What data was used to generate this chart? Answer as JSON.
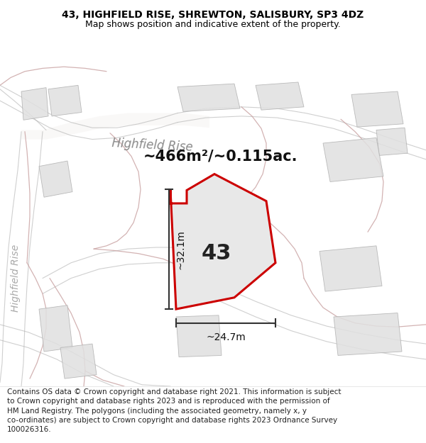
{
  "title_line1": "43, HIGHFIELD RISE, SHREWTON, SALISBURY, SP3 4DZ",
  "title_line2": "Map shows position and indicative extent of the property.",
  "area_text": "~466m²/~0.115ac.",
  "property_label": "43",
  "road_label_top": "Highfield Rise",
  "road_label_left": "Highfield Rise",
  "dim_vertical": "~32.1m",
  "dim_horizontal": "~24.7m",
  "disclaimer": "Contains OS data © Crown copyright and database right 2021. This information is subject\nto Crown copyright and database rights 2023 and is reproduced with the permission of\nHM Land Registry. The polygons (including the associated geometry, namely x, y\nco-ordinates) are subject to Crown copyright and database rights 2023 Ordnance Survey\n100026316.",
  "map_bg": "#ffffff",
  "property_fill": "#e8e8e8",
  "property_edge": "#cc0000",
  "road_outline_color": "#c8a0a0",
  "road_fill_color": "#f5f0f0",
  "building_fill": "#e0e0e0",
  "building_edge": "#b0b0b0",
  "gray_road_color": "#b0b0b0",
  "title_fontsize": 10,
  "subtitle_fontsize": 9,
  "area_fontsize": 15,
  "label_fontsize": 22,
  "dim_fontsize": 10,
  "disclaimer_fontsize": 7.5,
  "road_label_fontsize": 12
}
